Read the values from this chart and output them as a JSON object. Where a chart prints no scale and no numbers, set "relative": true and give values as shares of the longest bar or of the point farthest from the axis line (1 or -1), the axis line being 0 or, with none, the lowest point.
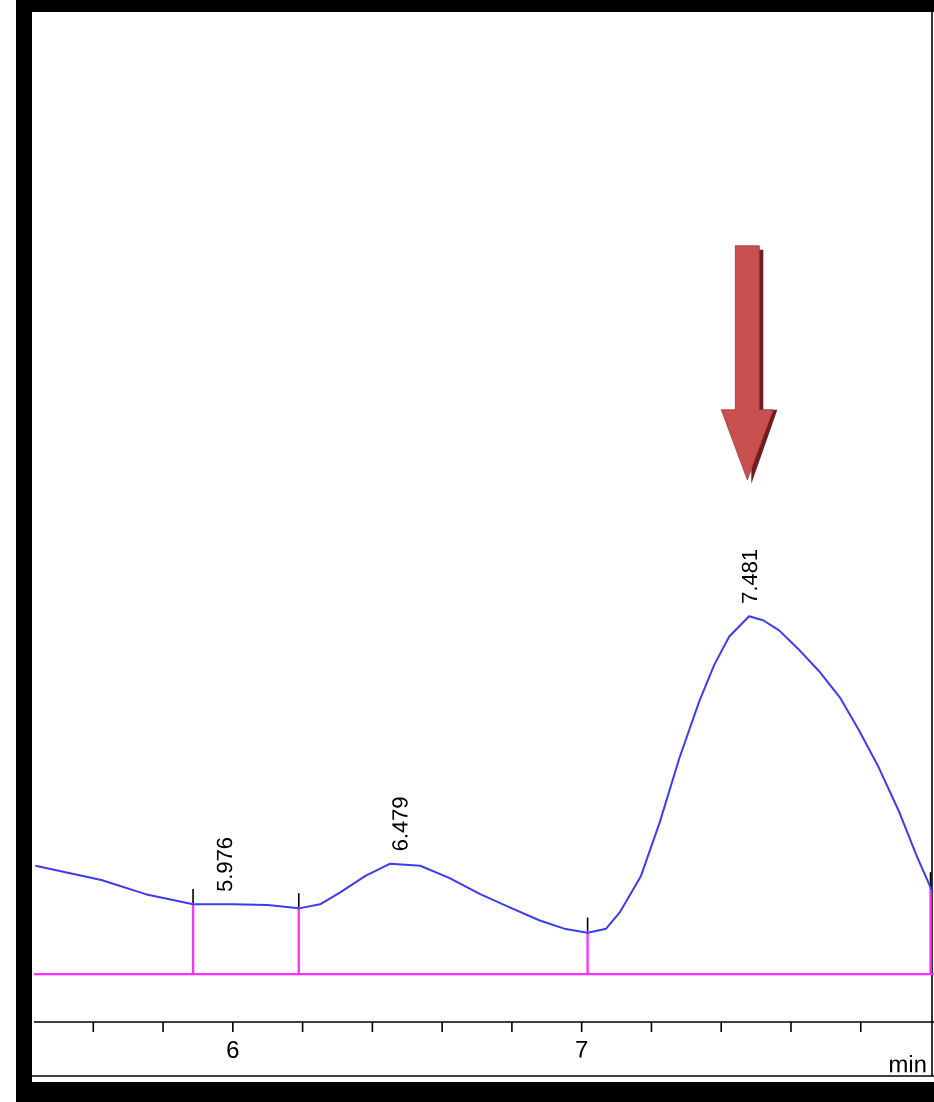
{
  "chart_data": {
    "type": "line",
    "relative": true,
    "xlabel": "min",
    "color": "#3c3cf0",
    "x": [
      5.434,
      5.623,
      5.75,
      5.886,
      6.0,
      6.1,
      6.189,
      6.25,
      6.309,
      6.38,
      6.451,
      6.537,
      6.62,
      6.709,
      6.8,
      6.88,
      6.95,
      7.017,
      7.07,
      7.109,
      7.17,
      7.223,
      7.28,
      7.337,
      7.38,
      7.423,
      7.48,
      7.52,
      7.566,
      7.62,
      7.68,
      7.74,
      7.794,
      7.85,
      7.909,
      7.96,
      8.006
    ],
    "values": [
      0.385,
      0.35,
      0.315,
      0.29,
      0.29,
      0.288,
      0.28,
      0.29,
      0.32,
      0.36,
      0.39,
      0.385,
      0.355,
      0.315,
      0.28,
      0.25,
      0.23,
      0.22,
      0.23,
      0.27,
      0.36,
      0.49,
      0.65,
      0.79,
      0.88,
      0.95,
      1.0,
      0.99,
      0.965,
      0.92,
      0.865,
      0.8,
      0.72,
      0.63,
      0.52,
      0.41,
      0.32
    ],
    "xlim": [
      5.43,
      8.01
    ],
    "xticks": [
      {
        "value": 5.6,
        "label": null
      },
      {
        "value": 5.8,
        "label": null
      },
      6,
      {
        "value": 6.2,
        "label": null
      },
      {
        "value": 6.4,
        "label": null
      },
      {
        "value": 6.6,
        "label": null
      },
      {
        "value": 6.8,
        "label": null
      },
      7,
      {
        "value": 7.2,
        "label": null
      },
      {
        "value": 7.4,
        "label": null
      },
      {
        "value": 7.6,
        "label": null
      },
      {
        "value": 7.8,
        "label": null
      }
    ],
    "annotations": [
      {
        "text": "5.976",
        "x": 5.976,
        "y": 0.29
      },
      {
        "text": "6.479",
        "x": 6.479,
        "y": 0.39
      },
      {
        "text": "7.481",
        "x": 7.481,
        "y": 1.0
      }
    ],
    "ref_lines": [
      {
        "axis": "y",
        "value": 0.118,
        "color": "#ff33ff"
      },
      {
        "axis": "x",
        "value": 5.886,
        "color": "#ff33ff"
      },
      {
        "axis": "x",
        "value": 6.189,
        "color": "#ff33ff"
      },
      {
        "axis": "x",
        "value": 7.017,
        "color": "#ff33ff"
      },
      {
        "axis": "x",
        "value": 8.0,
        "color": "#ff33ff"
      }
    ]
  }
}
